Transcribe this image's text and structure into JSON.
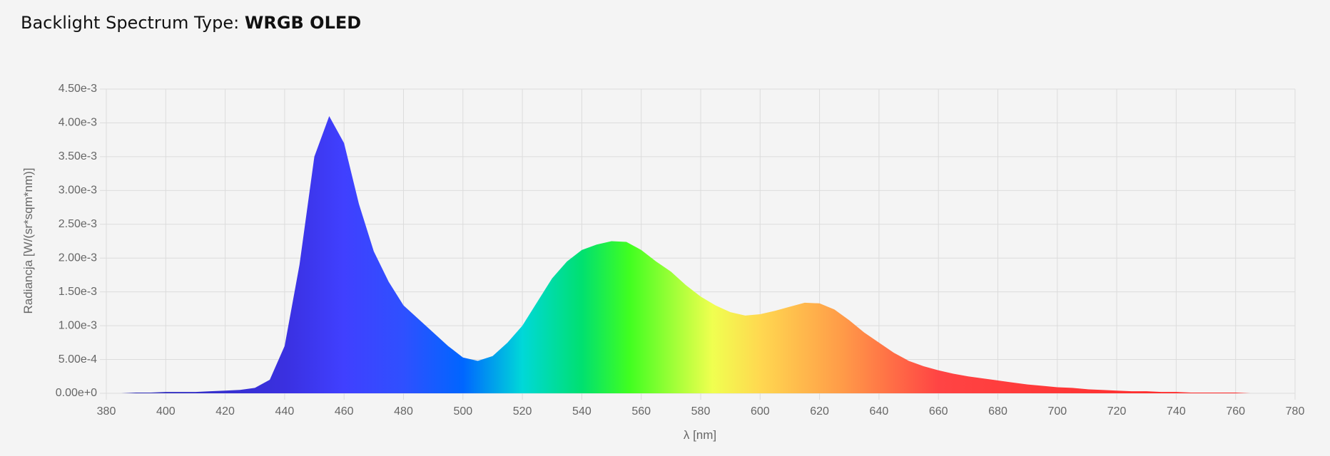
{
  "header": {
    "label": "Backlight Spectrum Type:",
    "value": "WRGB OLED"
  },
  "chart_data": {
    "type": "area",
    "x_label": "λ [nm]",
    "y_label": "Radiancja [W/(sr*sqm*nm)]",
    "x": [
      380,
      385,
      390,
      395,
      400,
      405,
      410,
      415,
      420,
      425,
      430,
      435,
      440,
      445,
      450,
      455,
      460,
      465,
      470,
      475,
      480,
      485,
      490,
      495,
      500,
      505,
      510,
      515,
      520,
      525,
      530,
      535,
      540,
      545,
      550,
      555,
      560,
      565,
      570,
      575,
      580,
      585,
      590,
      595,
      600,
      605,
      610,
      615,
      620,
      625,
      630,
      635,
      640,
      645,
      650,
      655,
      660,
      665,
      670,
      675,
      680,
      685,
      690,
      695,
      700,
      705,
      710,
      715,
      720,
      725,
      730,
      735,
      740,
      745,
      750,
      755,
      760,
      765,
      770,
      775,
      780
    ],
    "values": [
      0,
      0,
      1e-05,
      1e-05,
      2e-05,
      2e-05,
      2e-05,
      3e-05,
      4e-05,
      5e-05,
      8e-05,
      0.0002,
      0.0007,
      0.0019,
      0.0035,
      0.0041,
      0.0037,
      0.0028,
      0.0021,
      0.00165,
      0.0013,
      0.0011,
      0.0009,
      0.0007,
      0.00053,
      0.00048,
      0.00055,
      0.00075,
      0.001,
      0.00135,
      0.0017,
      0.00195,
      0.00212,
      0.0022,
      0.00225,
      0.00224,
      0.00212,
      0.00195,
      0.0018,
      0.0016,
      0.00143,
      0.0013,
      0.0012,
      0.00115,
      0.00117,
      0.00122,
      0.00128,
      0.00134,
      0.00133,
      0.00124,
      0.00108,
      0.0009,
      0.00075,
      0.0006,
      0.00048,
      0.0004,
      0.00034,
      0.00029,
      0.00025,
      0.00022,
      0.00019,
      0.00016,
      0.00013,
      0.00011,
      9e-05,
      8e-05,
      6e-05,
      5e-05,
      4e-05,
      3e-05,
      3e-05,
      2e-05,
      2e-05,
      1e-05,
      1e-05,
      1e-05,
      1e-05,
      0,
      0,
      0,
      0
    ],
    "xlim": [
      380,
      780
    ],
    "xticks": [
      380,
      400,
      420,
      440,
      460,
      480,
      500,
      520,
      540,
      560,
      580,
      600,
      620,
      640,
      660,
      680,
      700,
      720,
      740,
      760,
      780
    ],
    "ylim": [
      0,
      0.0045
    ],
    "yticks": [
      {
        "value": 0,
        "label": "0.00e+0"
      },
      {
        "value": 0.0005,
        "label": "5.00e-4"
      },
      {
        "value": 0.001,
        "label": "1.00e-3"
      },
      {
        "value": 0.0015,
        "label": "1.50e-3"
      },
      {
        "value": 0.002,
        "label": "2.00e-3"
      },
      {
        "value": 0.0025,
        "label": "2.50e-3"
      },
      {
        "value": 0.003,
        "label": "3.00e-3"
      },
      {
        "value": 0.0035,
        "label": "3.50e-3"
      },
      {
        "value": 0.004,
        "label": "4.00e-3"
      },
      {
        "value": 0.0045,
        "label": "4.50e-3"
      }
    ],
    "grid": true
  }
}
